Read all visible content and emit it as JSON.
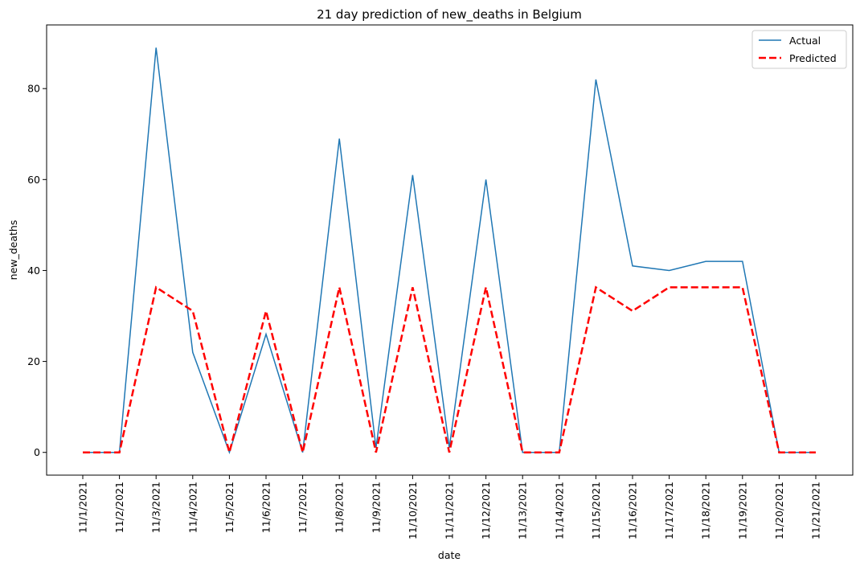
{
  "chart_data": {
    "type": "line",
    "title": "21 day prediction of new_deaths in Belgium",
    "xlabel": "date",
    "ylabel": "new_deaths",
    "categories": [
      "11/1/2021",
      "11/2/2021",
      "11/3/2021",
      "11/4/2021",
      "11/5/2021",
      "11/6/2021",
      "11/7/2021",
      "11/8/2021",
      "11/9/2021",
      "11/10/2021",
      "11/11/2021",
      "11/12/2021",
      "11/13/2021",
      "11/14/2021",
      "11/15/2021",
      "11/16/2021",
      "11/17/2021",
      "11/18/2021",
      "11/19/2021",
      "11/20/2021",
      "11/21/2021"
    ],
    "ylim": [
      -5,
      94
    ],
    "yticks": [
      0,
      20,
      40,
      60,
      80
    ],
    "grid": false,
    "legend_position": "top-right",
    "series": [
      {
        "name": "Actual",
        "color": "#1f77b4",
        "style": "solid",
        "values": [
          0,
          0,
          89,
          22,
          0,
          26,
          0,
          69,
          1,
          61,
          1,
          60,
          0,
          0,
          82,
          41,
          40,
          42,
          42,
          0,
          0
        ]
      },
      {
        "name": "Predicted",
        "color": "#ff0000",
        "style": "dashed",
        "values": [
          0,
          0,
          36.3,
          31.1,
          0,
          31.1,
          0,
          36.3,
          0,
          36.3,
          0,
          36.3,
          0,
          0,
          36.3,
          31.1,
          36.3,
          36.3,
          36.3,
          0,
          0
        ]
      }
    ]
  }
}
